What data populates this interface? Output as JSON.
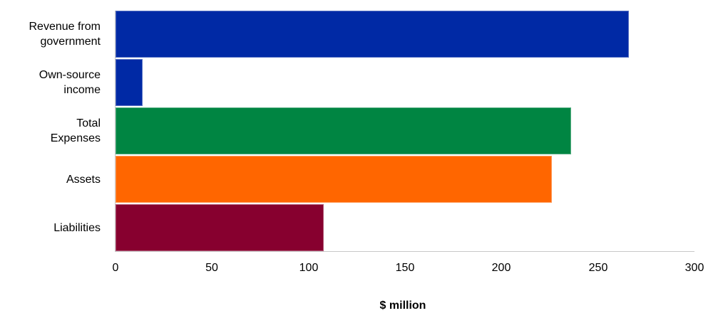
{
  "chart_data": {
    "type": "bar",
    "orientation": "horizontal",
    "title": "",
    "xlabel": "$ million",
    "ylabel": "",
    "xlim": [
      0,
      300
    ],
    "x_ticks": [
      0,
      50,
      100,
      150,
      200,
      250,
      300
    ],
    "grid": false,
    "legend": null,
    "categories": [
      "Revenue from government",
      "Own-source income",
      "Total Expenses",
      "Assets",
      "Liabilities"
    ],
    "values": [
      266,
      14,
      236,
      226,
      108
    ],
    "colors": [
      "#0029a5",
      "#0029a5",
      "#008542",
      "#ff6600",
      "#87002f"
    ]
  },
  "labels": {
    "cat0_line1": "Revenue from",
    "cat0_line2": "government",
    "cat1_line1": "Own-source",
    "cat1_line2": "income",
    "cat2_line1": "Total",
    "cat2_line2": "Expenses",
    "cat3": "Assets",
    "cat4": "Liabilities",
    "xlabel": "$ million",
    "ticks": [
      "0",
      "50",
      "100",
      "150",
      "200",
      "250",
      "300"
    ]
  }
}
